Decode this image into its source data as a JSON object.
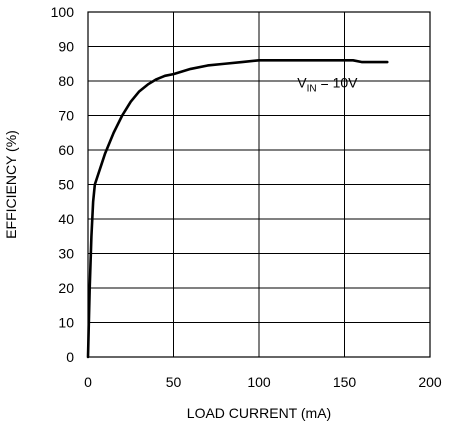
{
  "chart_data": {
    "type": "line",
    "title": "",
    "xlabel": "LOAD CURRENT (mA)",
    "ylabel": "EFFICIENCY (%)",
    "xlim": [
      0,
      200
    ],
    "ylim": [
      0,
      100
    ],
    "xticks": [
      "0",
      "50",
      "100",
      "150",
      "200"
    ],
    "yticks": [
      "0",
      "10",
      "20",
      "30",
      "40",
      "50",
      "60",
      "70",
      "80",
      "90",
      "100"
    ],
    "grid": true,
    "annotation": {
      "main": "V",
      "subscript": "IN",
      "suffix": " = 10V",
      "at": [
        140,
        79.5
      ]
    },
    "series": [
      {
        "x": [
          0,
          1,
          2,
          3,
          4,
          6,
          8,
          10,
          15,
          20,
          25,
          30,
          35,
          40,
          45,
          50,
          60,
          70,
          80,
          90,
          100,
          120,
          140,
          150,
          155,
          160,
          175
        ],
        "y": [
          0,
          20,
          35,
          45,
          50,
          53,
          56,
          59,
          65,
          70,
          74,
          77,
          79,
          80.5,
          81.5,
          82,
          83.5,
          84.5,
          85,
          85.5,
          86,
          86,
          86,
          86,
          86,
          85.5,
          85.5
        ]
      }
    ]
  }
}
